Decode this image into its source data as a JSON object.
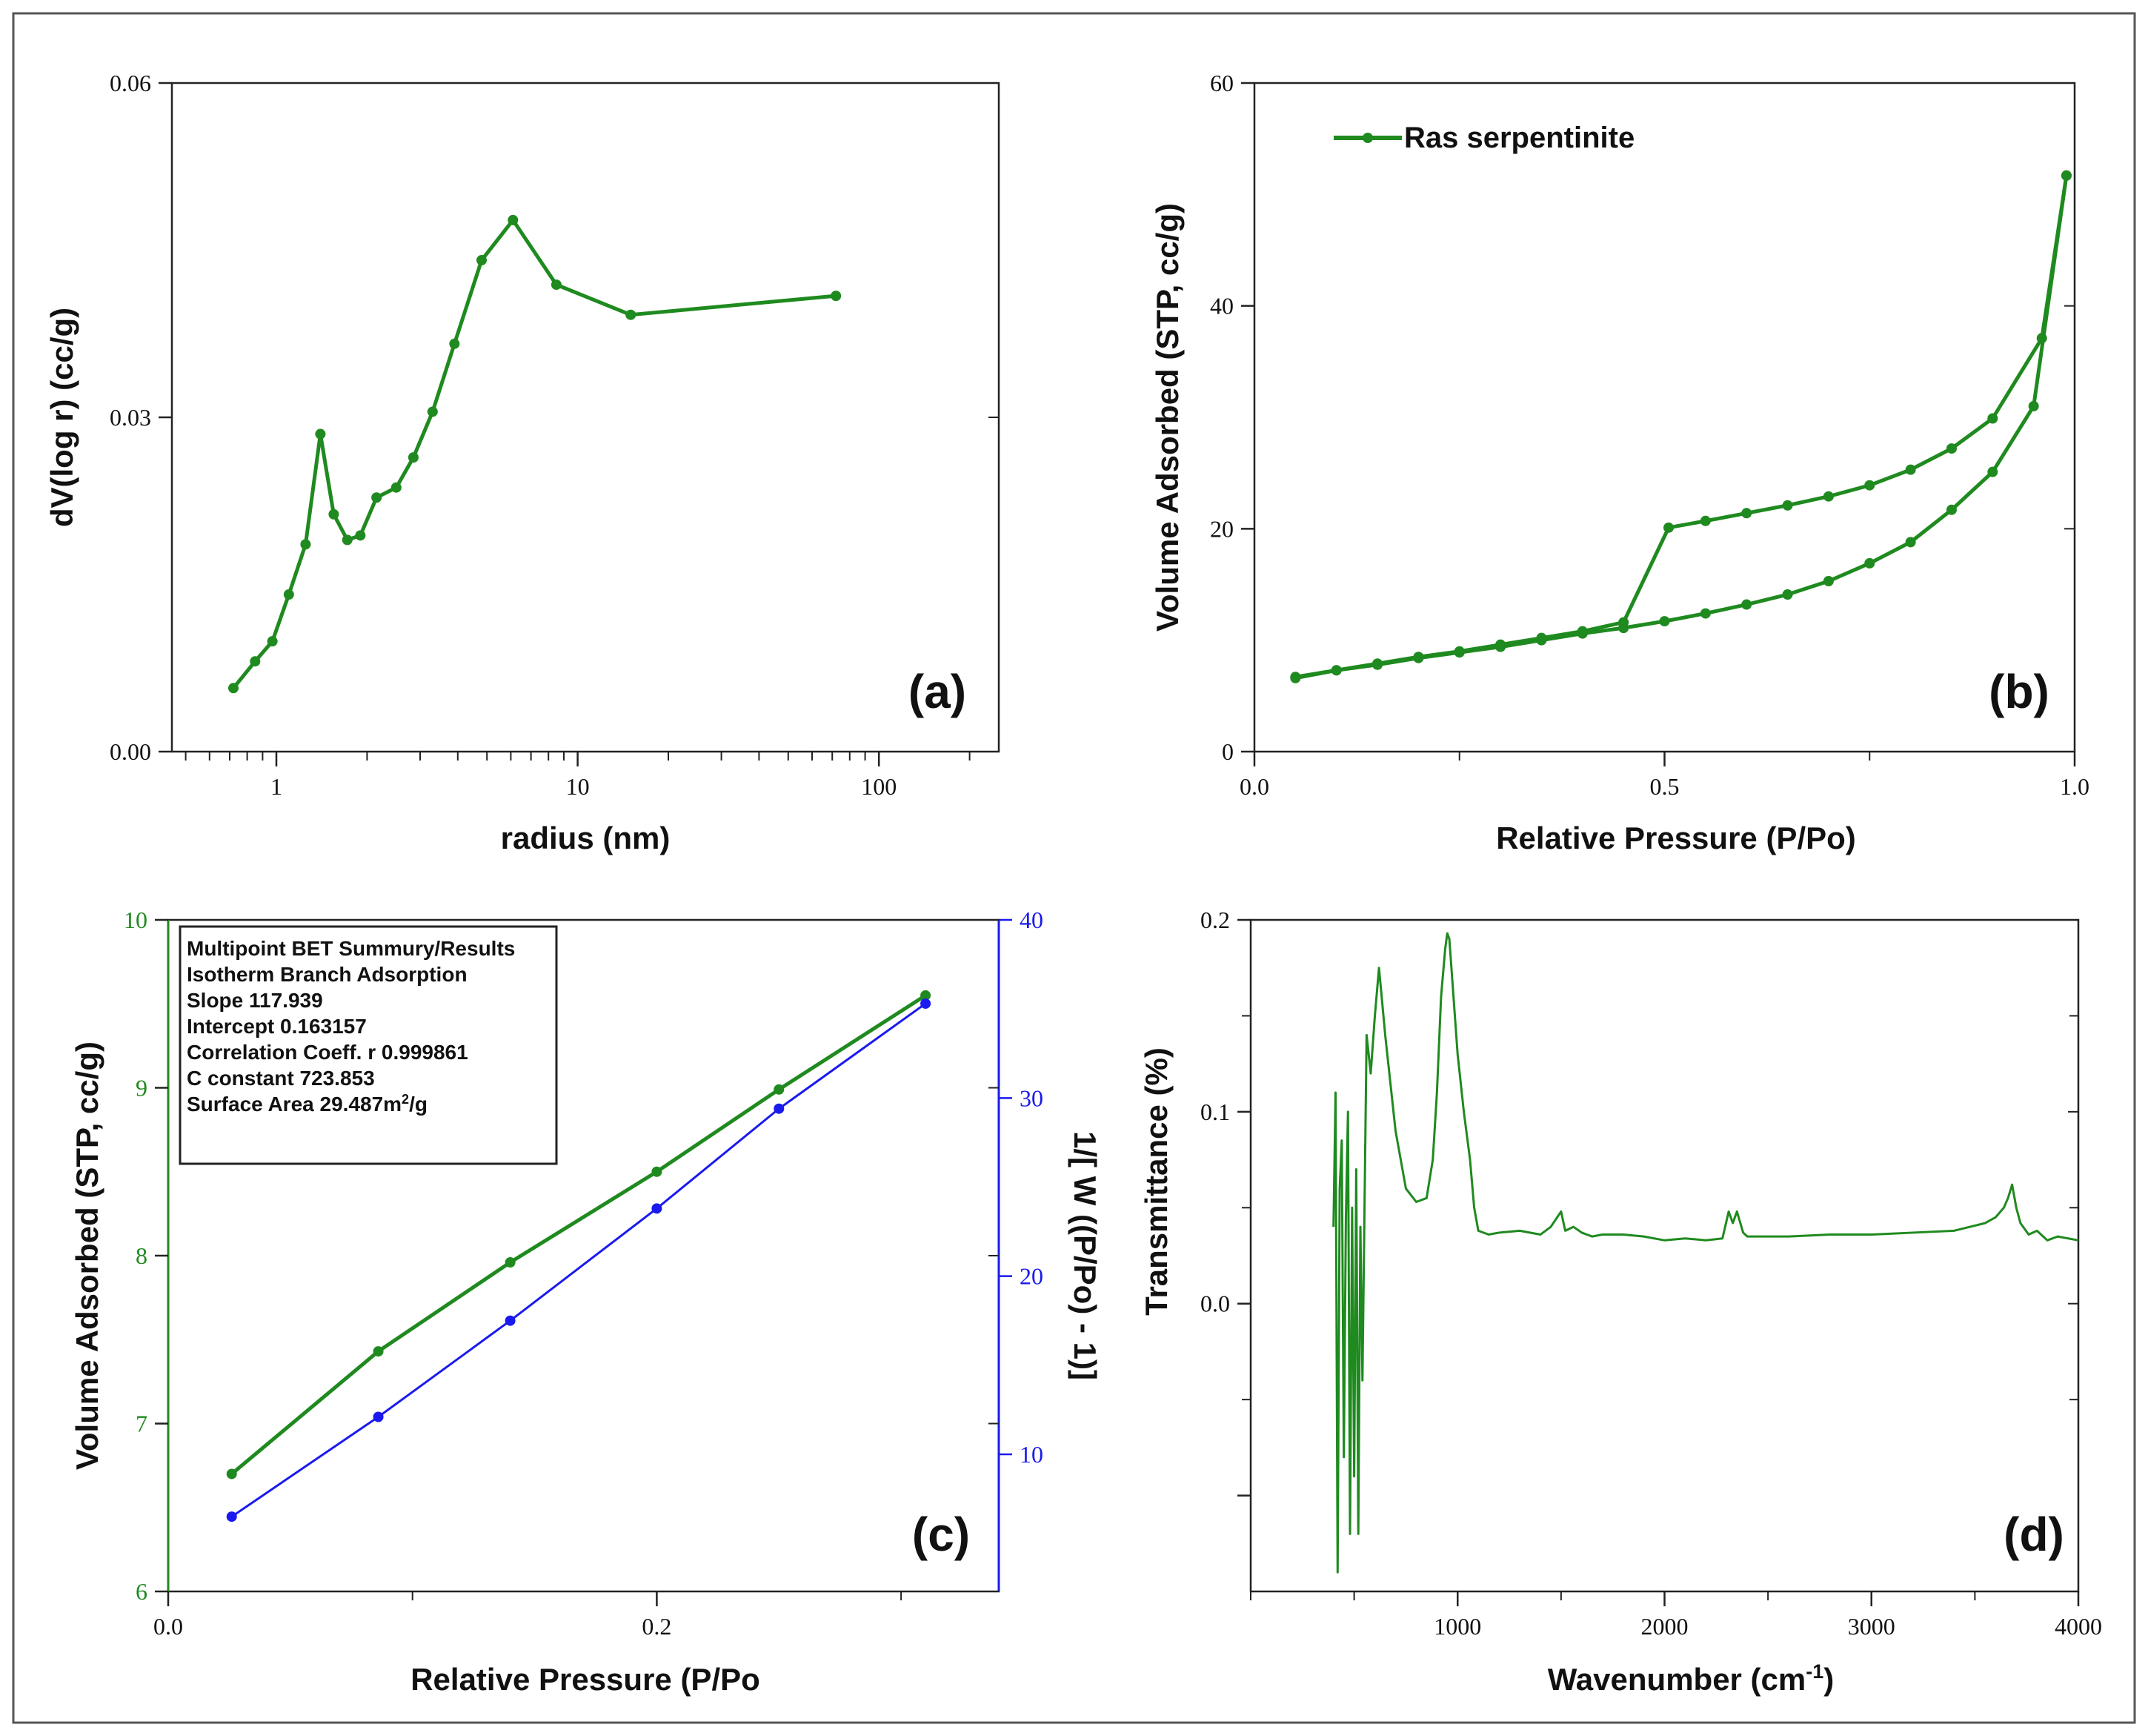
{
  "chart_data": [
    {
      "id": "a",
      "type": "line",
      "panel_label": "(a)",
      "xlabel": "radius (nm)",
      "ylabel": "dV(log r) (cc/g)",
      "xscale": "log",
      "xlim": [
        0.45,
        250
      ],
      "ylim": [
        0.0,
        0.06
      ],
      "xticks": [
        {
          "v": 1,
          "label": "1"
        },
        {
          "v": 10,
          "label": "10"
        },
        {
          "v": 100,
          "label": "100"
        }
      ],
      "yticks": [
        {
          "v": 0.0,
          "label": "0.00"
        },
        {
          "v": 0.03,
          "label": "0.03"
        },
        {
          "v": 0.06,
          "label": "0.06"
        }
      ],
      "series": [
        {
          "name": "pore size distribution",
          "color": "#1f8a1f",
          "x": [
            0.72,
            0.85,
            0.97,
            1.1,
            1.25,
            1.4,
            1.55,
            1.72,
            1.9,
            2.15,
            2.5,
            2.85,
            3.3,
            3.9,
            4.8,
            6.1,
            8.5,
            15,
            72
          ],
          "y": [
            0.0057,
            0.0081,
            0.0099,
            0.0141,
            0.0186,
            0.0285,
            0.0213,
            0.019,
            0.0194,
            0.0228,
            0.0237,
            0.0264,
            0.0305,
            0.0366,
            0.0441,
            0.0477,
            0.0419,
            0.0392,
            0.0409
          ]
        }
      ]
    },
    {
      "id": "b",
      "type": "line",
      "panel_label": "(b)",
      "xlabel": "Relative Pressure (P/Po)",
      "ylabel": "Volume Adsorbed (STP, cc/g)",
      "xlim": [
        0.0,
        1.0
      ],
      "ylim": [
        0,
        60
      ],
      "xticks": [
        {
          "v": 0.0,
          "label": "0.0"
        },
        {
          "v": 0.5,
          "label": "0.5"
        },
        {
          "v": 1.0,
          "label": "1.0"
        }
      ],
      "yticks": [
        {
          "v": 0,
          "label": "0"
        },
        {
          "v": 20,
          "label": "20"
        },
        {
          "v": 40,
          "label": "40"
        },
        {
          "v": 60,
          "label": "60"
        }
      ],
      "legend": "top-left",
      "legend_label": "Ras serpentinite",
      "series": [
        {
          "name": "adsorption",
          "color": "#1f8a1f",
          "x": [
            0.05,
            0.1,
            0.15,
            0.2,
            0.25,
            0.3,
            0.35,
            0.4,
            0.45,
            0.5,
            0.55,
            0.6,
            0.65,
            0.7,
            0.75,
            0.8,
            0.85,
            0.9,
            0.95,
            0.99
          ],
          "y": [
            6.6,
            7.3,
            7.8,
            8.4,
            8.9,
            9.4,
            10.0,
            10.6,
            11.1,
            11.7,
            12.4,
            13.2,
            14.1,
            15.3,
            16.9,
            18.8,
            21.7,
            25.1,
            31.0,
            51.7
          ]
        },
        {
          "name": "desorption",
          "color": "#1f8a1f",
          "x": [
            0.99,
            0.96,
            0.9,
            0.85,
            0.8,
            0.75,
            0.7,
            0.65,
            0.6,
            0.55,
            0.505,
            0.45,
            0.4,
            0.35,
            0.3,
            0.25,
            0.2,
            0.15,
            0.1,
            0.05
          ],
          "y": [
            51.7,
            37.1,
            29.9,
            27.2,
            25.3,
            23.9,
            22.9,
            22.1,
            21.4,
            20.7,
            20.1,
            11.6,
            10.8,
            10.2,
            9.6,
            9.0,
            8.5,
            7.9,
            7.3,
            6.7
          ]
        }
      ]
    },
    {
      "id": "c",
      "type": "line",
      "panel_label": "(c)",
      "xlabel": "Relative Pressure (P/Po",
      "ylabel": "Volume Adsorbed (STP, cc/g)",
      "y2label": "1/[ W ((P/Po) - 1)]",
      "xlim": [
        0.0,
        0.34
      ],
      "ylim": [
        6,
        10
      ],
      "y2lim": [
        2.3,
        40
      ],
      "xticks": [
        {
          "v": 0.0,
          "label": "0.0"
        },
        {
          "v": 0.2,
          "label": "0.2"
        }
      ],
      "yticks": [
        {
          "v": 6,
          "label": "6"
        },
        {
          "v": 7,
          "label": "7"
        },
        {
          "v": 8,
          "label": "8"
        },
        {
          "v": 9,
          "label": "9"
        },
        {
          "v": 10,
          "label": "10"
        }
      ],
      "y2ticks": [
        {
          "v": 10,
          "label": "10"
        },
        {
          "v": 20,
          "label": "20"
        },
        {
          "v": 30,
          "label": "30"
        },
        {
          "v": 40,
          "label": "40"
        }
      ],
      "series": [
        {
          "name": "Volume Adsorbed",
          "axis": "left",
          "color": "#1f8a1f",
          "x": [
            0.026,
            0.086,
            0.14,
            0.2,
            0.25,
            0.31
          ],
          "y": [
            6.7,
            7.43,
            7.96,
            8.5,
            8.99,
            9.55
          ]
        },
        {
          "name": "1/[W((P/Po)-1)]",
          "axis": "right",
          "color": "#1a1aee",
          "x": [
            0.026,
            0.086,
            0.14,
            0.2,
            0.25,
            0.31
          ],
          "y": [
            6.5,
            12.1,
            17.5,
            23.8,
            29.4,
            35.3
          ]
        }
      ],
      "summary_box": {
        "lines": [
          "Multipoint BET Summury/Results",
          "Isotherm Branch Adsorption",
          "Slope 117.939",
          "Intercept 0.163157",
          "Correlation Coeff. r 0.999861",
          "C constant 723.853"
        ],
        "surface_area_prefix": "Surface Area 29.487m",
        "surface_area_sup": "2",
        "surface_area_suffix": "/g"
      }
    },
    {
      "id": "d",
      "type": "line",
      "panel_label": "(d)",
      "xlabel_main": "Wavenumber (cm",
      "xlabel_sup": "-1",
      "xlabel_end": ")",
      "ylabel": "Transmittance (%)",
      "xlim": [
        0,
        4000
      ],
      "ylim": [
        -0.15,
        0.2
      ],
      "xticks": [
        {
          "v": 1000,
          "label": "1000"
        },
        {
          "v": 2000,
          "label": "2000"
        },
        {
          "v": 3000,
          "label": "3000"
        },
        {
          "v": 4000,
          "label": "4000"
        }
      ],
      "yticks": [
        {
          "v": 0.0,
          "label": "0.0"
        },
        {
          "v": 0.1,
          "label": "0.1"
        },
        {
          "v": 0.2,
          "label": "0.2"
        }
      ],
      "series": [
        {
          "name": "FTIR spectrum",
          "color": "#1f8a1f",
          "x": [
            400,
            410,
            420,
            430,
            440,
            450,
            460,
            470,
            480,
            490,
            500,
            510,
            520,
            530,
            540,
            560,
            580,
            600,
            620,
            650,
            700,
            750,
            800,
            850,
            880,
            900,
            920,
            940,
            950,
            960,
            980,
            1000,
            1030,
            1060,
            1080,
            1100,
            1150,
            1200,
            1300,
            1400,
            1450,
            1500,
            1520,
            1560,
            1600,
            1650,
            1700,
            1800,
            1900,
            2000,
            2100,
            2200,
            2280,
            2310,
            2330,
            2350,
            2380,
            2400,
            2500,
            2600,
            2800,
            3000,
            3200,
            3400,
            3550,
            3600,
            3640,
            3660,
            3680,
            3700,
            3720,
            3760,
            3800,
            3850,
            3900,
            3950,
            4000
          ],
          "y": [
            0.04,
            0.11,
            -0.14,
            0.06,
            0.085,
            -0.08,
            0.045,
            0.1,
            -0.12,
            0.05,
            -0.09,
            0.07,
            -0.12,
            0.04,
            -0.04,
            0.14,
            0.12,
            0.15,
            0.175,
            0.14,
            0.09,
            0.06,
            0.053,
            0.055,
            0.075,
            0.11,
            0.16,
            0.185,
            0.193,
            0.19,
            0.16,
            0.13,
            0.1,
            0.075,
            0.05,
            0.038,
            0.036,
            0.037,
            0.038,
            0.036,
            0.04,
            0.048,
            0.038,
            0.04,
            0.037,
            0.035,
            0.036,
            0.036,
            0.035,
            0.033,
            0.034,
            0.033,
            0.034,
            0.048,
            0.042,
            0.048,
            0.037,
            0.035,
            0.035,
            0.035,
            0.036,
            0.036,
            0.037,
            0.038,
            0.042,
            0.045,
            0.05,
            0.055,
            0.062,
            0.05,
            0.042,
            0.036,
            0.038,
            0.033,
            0.035,
            0.034,
            0.033
          ]
        }
      ]
    }
  ]
}
